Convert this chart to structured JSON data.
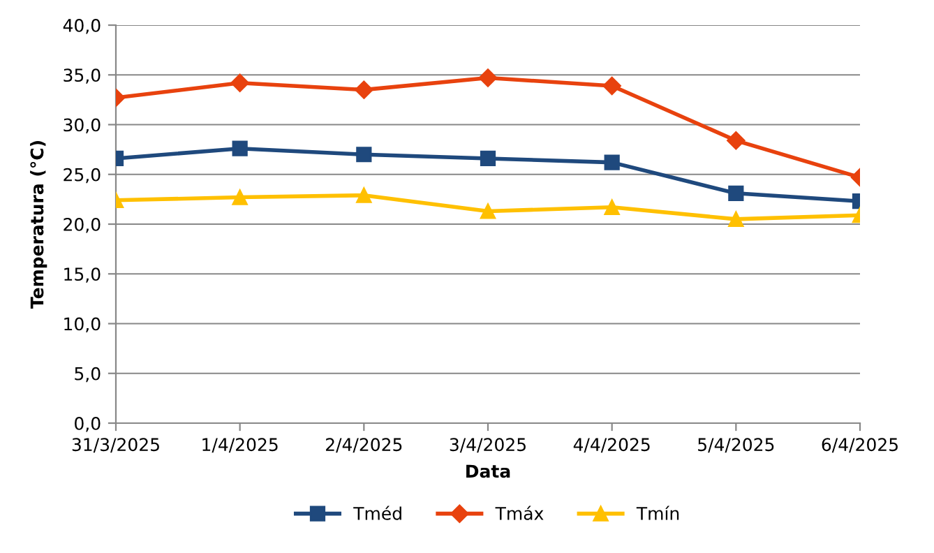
{
  "chart_data": {
    "type": "line",
    "xlabel": "Data",
    "ylabel": "Temperatura (°C)",
    "categories": [
      "31/3/2025",
      "1/4/2025",
      "2/4/2025",
      "3/4/2025",
      "4/4/2025",
      "5/4/2025",
      "6/4/2025"
    ],
    "series": [
      {
        "name": "Tméd",
        "color": "#1f497d",
        "marker": "square",
        "values": [
          26.6,
          27.6,
          27.0,
          26.6,
          26.2,
          23.1,
          22.3
        ]
      },
      {
        "name": "Tmáx",
        "color": "#e8420e",
        "marker": "diamond",
        "values": [
          32.7,
          34.2,
          33.5,
          34.7,
          33.9,
          28.4,
          24.7
        ]
      },
      {
        "name": "Tmín",
        "color": "#ffc000",
        "marker": "triangle",
        "values": [
          22.4,
          22.7,
          22.9,
          21.3,
          21.7,
          20.5,
          20.9
        ]
      }
    ],
    "ylim": [
      0,
      40
    ],
    "yticks": [
      {
        "value": 0,
        "label": "0,0"
      },
      {
        "value": 5,
        "label": "5,0"
      },
      {
        "value": 10,
        "label": "10,0"
      },
      {
        "value": 15,
        "label": "15,0"
      },
      {
        "value": 20,
        "label": "20,0"
      },
      {
        "value": 25,
        "label": "25,0"
      },
      {
        "value": 30,
        "label": "30,0"
      },
      {
        "value": 35,
        "label": "35,0"
      },
      {
        "value": 40,
        "label": "40,0"
      }
    ],
    "grid": "y",
    "legend": "bottom",
    "line_style": "solid"
  }
}
